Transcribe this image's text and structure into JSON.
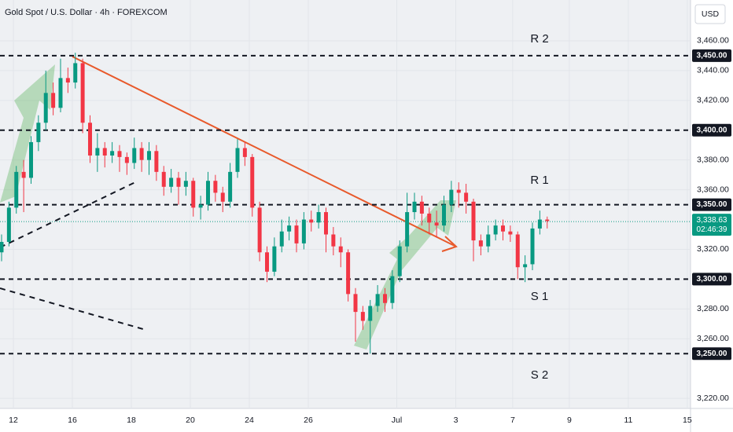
{
  "chart_data": {
    "type": "candlestick",
    "title": "Gold Spot / U.S. Dollar · 4h · FOREXCOM",
    "currency": "USD",
    "up_color": "#089981",
    "down_color": "#f23645",
    "grid": true,
    "xlim": [
      -0.453,
      22.96
    ],
    "ylim": [
      3213.2,
      3487.4
    ],
    "xticks": [
      {
        "value": 0,
        "label": "12"
      },
      {
        "value": 2,
        "label": "16"
      },
      {
        "value": 4,
        "label": "18"
      },
      {
        "value": 6,
        "label": "20"
      },
      {
        "value": 8,
        "label": "24"
      },
      {
        "value": 10,
        "label": "26"
      },
      {
        "value": 13,
        "label": "Jul"
      },
      {
        "value": 15,
        "label": "3"
      },
      {
        "value": 16.93,
        "label": "7"
      },
      {
        "value": 18.85,
        "label": "9"
      },
      {
        "value": 20.85,
        "label": "11"
      },
      {
        "value": 22.85,
        "label": "15"
      }
    ],
    "yticks": [
      {
        "value": 3460,
        "label": "3,460.00"
      },
      {
        "value": 3440,
        "label": "3,440.00"
      },
      {
        "value": 3420,
        "label": "3,420.00"
      },
      {
        "value": 3380,
        "label": "3,380.00"
      },
      {
        "value": 3360,
        "label": "3,360.00"
      },
      {
        "value": 3320,
        "label": "3,320.00"
      },
      {
        "value": 3280,
        "label": "3,280.00"
      },
      {
        "value": 3260,
        "label": "3,260.00"
      },
      {
        "value": 3220,
        "label": "3,220.00"
      }
    ],
    "levels": [
      {
        "value": 3450,
        "label": "3,450.00"
      },
      {
        "value": 3400,
        "label": "3,400.00"
      },
      {
        "value": 3350,
        "label": "3,350.00"
      },
      {
        "value": 3300,
        "label": "3,300.00"
      },
      {
        "value": 3250,
        "label": "3,250.00"
      }
    ],
    "last_price": {
      "value": 3338.63,
      "label": "3,338.63",
      "countdown": "02:46:39",
      "color": "#089981"
    },
    "annotations": [
      "R 2",
      "R 1",
      "S 1",
      "S 2"
    ],
    "candles": {
      "x": [
        -0.4,
        -0.15,
        0.1,
        0.35,
        0.6,
        0.85,
        1.1,
        1.35,
        1.6,
        1.85,
        2.1,
        2.35,
        2.6,
        2.85,
        3.1,
        3.35,
        3.6,
        3.85,
        4.1,
        4.35,
        4.6,
        4.85,
        5.1,
        5.35,
        5.6,
        5.85,
        6.1,
        6.35,
        6.6,
        6.85,
        7.1,
        7.35,
        7.6,
        7.85,
        8.1,
        8.35,
        8.6,
        8.85,
        9.1,
        9.35,
        9.6,
        9.85,
        10.1,
        10.35,
        10.6,
        10.85,
        11.1,
        11.35,
        11.6,
        11.85,
        12.1,
        12.35,
        12.6,
        12.85,
        13.1,
        13.35,
        13.6,
        13.85,
        14.1,
        14.35,
        14.6,
        14.85,
        15.1,
        15.35,
        15.6,
        15.85,
        16.1,
        16.35,
        16.6,
        16.85,
        17.1,
        17.35,
        17.6,
        17.85,
        18.1
      ],
      "open": [
        3318,
        3325,
        3348,
        3372,
        3368,
        3392,
        3405,
        3425,
        3415,
        3435,
        3432,
        3445,
        3405,
        3383,
        3388,
        3383,
        3386,
        3382,
        3378,
        3388,
        3380,
        3386,
        3372,
        3362,
        3368,
        3362,
        3366,
        3348,
        3350,
        3366,
        3358,
        3352,
        3372,
        3388,
        3382,
        3348,
        3318,
        3305,
        3322,
        3332,
        3336,
        3324,
        3340,
        3338,
        3345,
        3330,
        3322,
        3318,
        3290,
        3278,
        3272,
        3282,
        3290,
        3284,
        3302,
        3322,
        3345,
        3352,
        3344,
        3338,
        3336,
        3350,
        3360,
        3358,
        3352,
        3326,
        3322,
        3330,
        3336,
        3332,
        3330,
        3308,
        3310,
        3334,
        3340
      ],
      "high": [
        3330,
        3352,
        3376,
        3380,
        3396,
        3410,
        3440,
        3432,
        3448,
        3442,
        3452,
        3448,
        3410,
        3398,
        3392,
        3392,
        3390,
        3385,
        3395,
        3392,
        3392,
        3390,
        3376,
        3374,
        3372,
        3372,
        3368,
        3356,
        3372,
        3370,
        3362,
        3378,
        3394,
        3392,
        3384,
        3352,
        3322,
        3328,
        3340,
        3342,
        3340,
        3345,
        3346,
        3350,
        3348,
        3335,
        3328,
        3320,
        3294,
        3282,
        3286,
        3296,
        3294,
        3306,
        3326,
        3358,
        3358,
        3356,
        3348,
        3346,
        3356,
        3366,
        3365,
        3364,
        3354,
        3330,
        3336,
        3340,
        3340,
        3336,
        3332,
        3316,
        3338,
        3346,
        3342
      ],
      "low": [
        3312,
        3322,
        3344,
        3345,
        3364,
        3386,
        3400,
        3410,
        3412,
        3425,
        3428,
        3398,
        3378,
        3372,
        3375,
        3378,
        3372,
        3370,
        3374,
        3372,
        3370,
        3366,
        3356,
        3358,
        3350,
        3356,
        3342,
        3340,
        3346,
        3352,
        3345,
        3348,
        3368,
        3376,
        3342,
        3312,
        3298,
        3302,
        3318,
        3326,
        3318,
        3320,
        3332,
        3334,
        3318,
        3316,
        3308,
        3285,
        3258,
        3266,
        3250,
        3278,
        3278,
        3280,
        3298,
        3318,
        3340,
        3336,
        3330,
        3328,
        3332,
        3345,
        3348,
        3344,
        3312,
        3316,
        3318,
        3326,
        3326,
        3325,
        3300,
        3298,
        3306,
        3330,
        3334
      ],
      "close": [
        3325,
        3348,
        3372,
        3368,
        3392,
        3405,
        3425,
        3415,
        3435,
        3432,
        3445,
        3405,
        3383,
        3388,
        3383,
        3386,
        3382,
        3378,
        3388,
        3380,
        3386,
        3372,
        3362,
        3368,
        3362,
        3366,
        3348,
        3350,
        3366,
        3358,
        3352,
        3372,
        3388,
        3382,
        3348,
        3318,
        3305,
        3322,
        3332,
        3336,
        3324,
        3340,
        3338,
        3345,
        3330,
        3322,
        3318,
        3290,
        3278,
        3272,
        3282,
        3290,
        3284,
        3302,
        3322,
        3345,
        3352,
        3344,
        3338,
        3336,
        3350,
        3360,
        3358,
        3352,
        3326,
        3322,
        3330,
        3336,
        3332,
        3330,
        3308,
        3310,
        3334,
        3340,
        3339
      ]
    }
  }
}
